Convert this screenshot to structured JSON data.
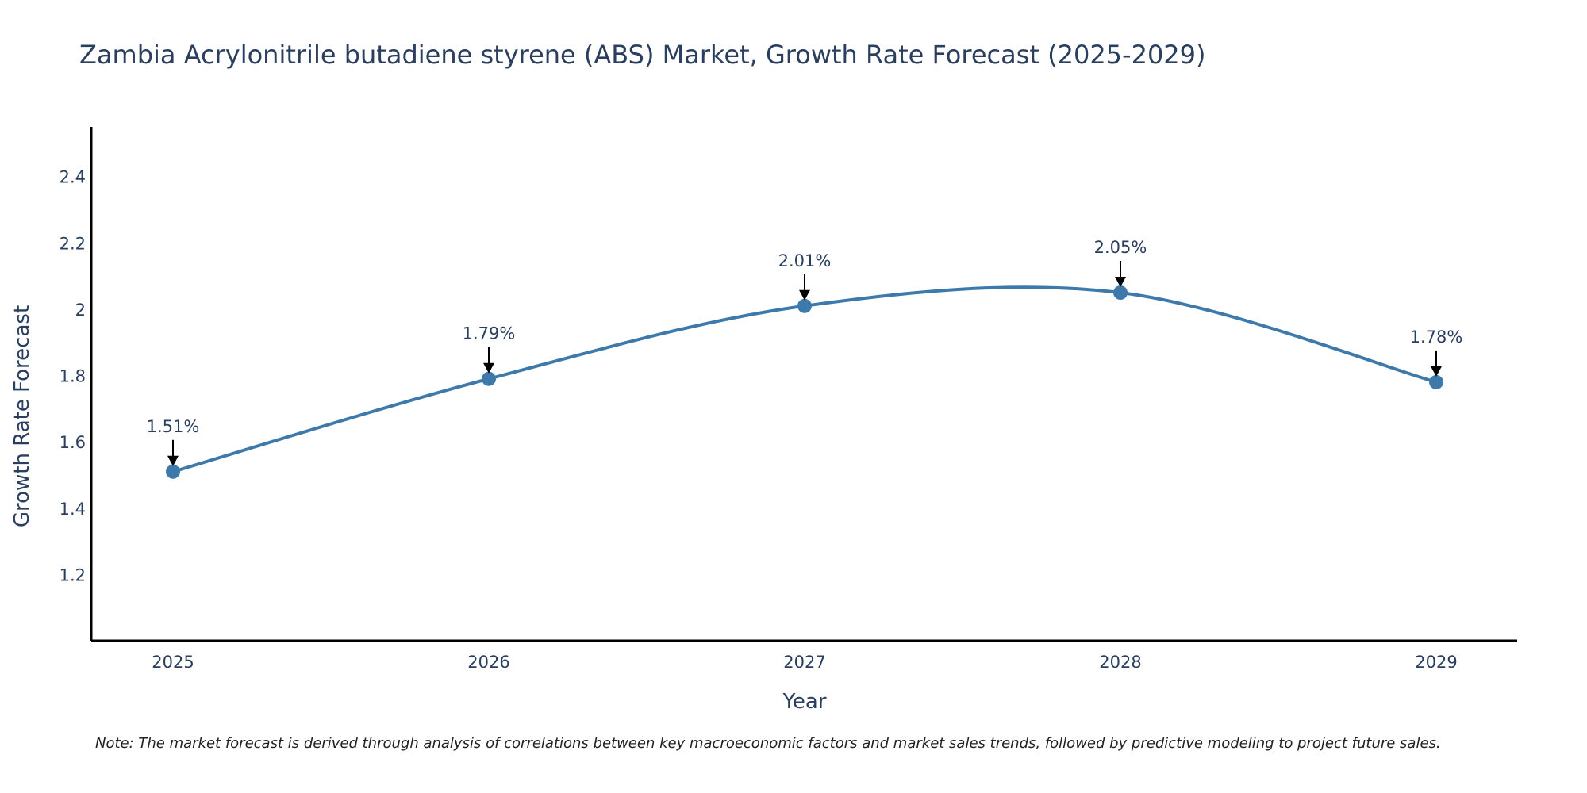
{
  "chart_data": {
    "type": "line",
    "title": "Zambia Acrylonitrile butadiene styrene (ABS) Market, Growth Rate Forecast (2025-2029)",
    "xlabel": "Year",
    "ylabel": "Growth Rate Forecast",
    "categories": [
      "2025",
      "2026",
      "2027",
      "2028",
      "2029"
    ],
    "values": [
      1.51,
      1.79,
      2.01,
      2.05,
      1.78
    ],
    "data_labels": [
      "1.51%",
      "1.79%",
      "2.01%",
      "2.05%",
      "1.78%"
    ],
    "ylim": [
      1.0,
      2.55
    ],
    "yticks": [
      1.2,
      1.4,
      1.6,
      1.8,
      2.0,
      2.2,
      2.4
    ],
    "ytick_labels": [
      "1.2",
      "1.4",
      "1.6",
      "1.8",
      "2",
      "2.2",
      "2.4"
    ],
    "grid": false,
    "line_shape": "spline",
    "color": "#3d7aab"
  },
  "note": "Note: The market forecast is derived through analysis of correlations between key macroeconomic factors and market sales trends, followed by predictive modeling to project future sales."
}
